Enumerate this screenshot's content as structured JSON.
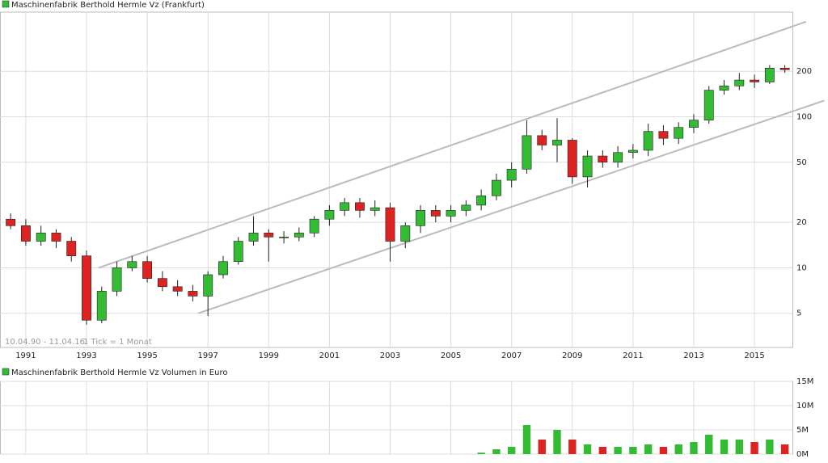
{
  "chart_data": [
    {
      "type": "candlestick",
      "title": "Maschinenfabrik Berthold Hermle Vz (Frankfurt)",
      "period": "10.04.90 - 11.04.16",
      "interval": "1 Tick = 1 Monat",
      "up_color": "#33bb33",
      "down_color": "#dd2222",
      "log_scale": true,
      "grid": true,
      "x": [
        1990.5,
        1991,
        1991.5,
        1992,
        1992.5,
        1993,
        1993.5,
        1994,
        1994.5,
        1995,
        1995.5,
        1996,
        1996.5,
        1997,
        1997.5,
        1998,
        1998.5,
        1999,
        1999.5,
        2000,
        2000.5,
        2001,
        2001.5,
        2002,
        2002.5,
        2003,
        2003.5,
        2004,
        2004.5,
        2005,
        2005.5,
        2006,
        2006.5,
        2007,
        2007.5,
        2008,
        2008.5,
        2009,
        2009.5,
        2010,
        2010.5,
        2011,
        2011.5,
        2012,
        2012.5,
        2013,
        2013.5,
        2014,
        2014.5,
        2015,
        2015.5,
        2016
      ],
      "open": [
        21,
        19,
        15,
        17,
        15,
        12,
        4.5,
        7,
        10,
        11,
        8.5,
        7.5,
        7,
        6.5,
        9,
        11,
        15,
        17,
        16,
        16,
        17,
        21,
        24,
        27,
        24,
        25,
        15,
        19,
        24,
        22,
        24,
        26,
        30,
        38,
        45,
        75,
        65,
        70,
        40,
        55,
        50,
        58,
        60,
        80,
        72,
        85,
        95,
        150,
        160,
        175,
        170,
        210
      ],
      "high": [
        23,
        21,
        19,
        18,
        16,
        13,
        7.5,
        11,
        12,
        12,
        9.5,
        8.3,
        7.7,
        9.5,
        12,
        16,
        22,
        18,
        17.5,
        18.5,
        22,
        26,
        29,
        29,
        28,
        27,
        20,
        26,
        26,
        26,
        28,
        33,
        42,
        50,
        95,
        82,
        98,
        72,
        60,
        60,
        64,
        66,
        90,
        88,
        92,
        104,
        160,
        175,
        195,
        190,
        220,
        220
      ],
      "low": [
        18,
        14,
        14,
        13.5,
        11,
        4.2,
        4.3,
        6.5,
        9.5,
        8,
        7,
        6.5,
        6,
        4.8,
        8.5,
        10.5,
        14,
        11,
        14.5,
        15,
        16,
        19,
        22,
        21.5,
        22,
        11,
        13.5,
        17,
        20,
        20,
        22,
        24,
        28,
        34,
        42,
        60,
        50,
        36,
        34,
        46,
        46,
        53,
        55,
        65,
        66,
        78,
        90,
        140,
        150,
        155,
        165,
        195
      ],
      "close": [
        19,
        15,
        17,
        15,
        12,
        4.5,
        7,
        10,
        11,
        8.5,
        7.5,
        7,
        6.5,
        9,
        11,
        15,
        17,
        16,
        16,
        17,
        21,
        24,
        27,
        24,
        25,
        15,
        19,
        24,
        22,
        24,
        26,
        30,
        38,
        45,
        75,
        65,
        70,
        40,
        55,
        50,
        58,
        60,
        80,
        72,
        85,
        95,
        150,
        160,
        175,
        170,
        210,
        205
      ],
      "xlim": [
        1990.15,
        2016.25
      ],
      "xticks": [
        1991,
        1993,
        1995,
        1997,
        1999,
        2001,
        2003,
        2005,
        2007,
        2009,
        2011,
        2013,
        2015
      ],
      "ylim": [
        2.97,
        493
      ],
      "yticks": [
        5,
        10,
        20,
        50,
        100,
        200
      ],
      "trendlines": [
        {
          "x": [
            1993.4,
            2016.7
          ],
          "y": [
            10,
            426
          ],
          "color": "#bbbbbb"
        },
        {
          "x": [
            1996.68,
            2017.3
          ],
          "y": [
            5,
            128
          ],
          "color": "#bbbbbb"
        }
      ]
    },
    {
      "type": "volume",
      "title": "Maschinenfabrik Berthold Hermle Vz Volumen in Euro",
      "values": [
        0,
        0,
        0,
        0,
        0,
        0,
        0,
        0,
        0,
        0,
        0,
        0,
        0,
        0,
        0,
        0,
        0,
        0,
        0,
        0,
        0,
        0,
        0,
        0,
        0,
        0,
        0,
        0,
        0,
        0,
        0,
        300000,
        1000000,
        1500000,
        6000000,
        3000000,
        5000000,
        3000000,
        2000000,
        1500000,
        1500000,
        1500000,
        2000000,
        1500000,
        2000000,
        2500000,
        4000000,
        3000000,
        3000000,
        2500000,
        3000000,
        2000000
      ],
      "ylim": [
        0,
        15000000
      ],
      "yticks": [
        {
          "value": 0,
          "label": "0M"
        },
        {
          "value": 5000000,
          "label": "5M"
        },
        {
          "value": 10000000,
          "label": "10M"
        },
        {
          "value": 15000000,
          "label": "15M"
        }
      ],
      "grid": true
    }
  ]
}
